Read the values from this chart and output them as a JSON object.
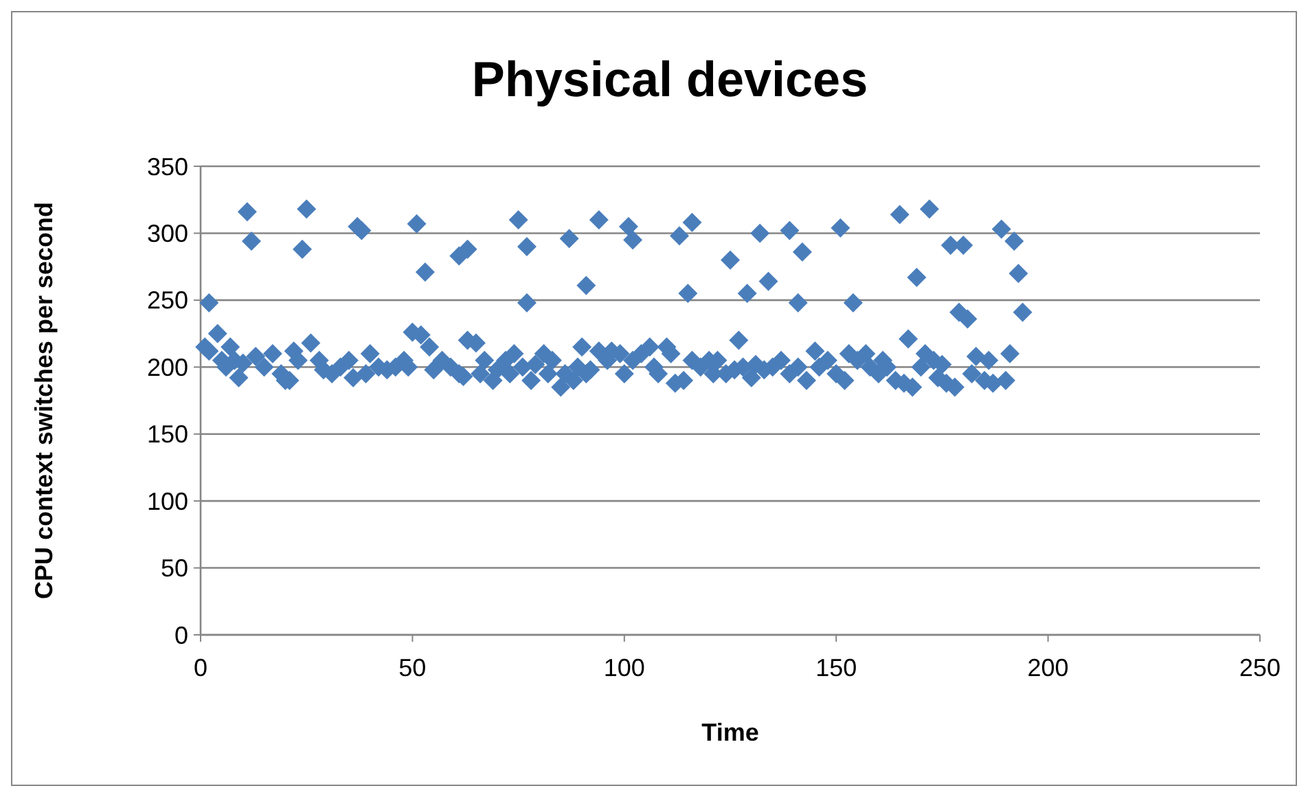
{
  "chart_data": {
    "type": "scatter",
    "title": "Physical devices",
    "xlabel": "Time",
    "ylabel": "CPU context switches per second",
    "xlim": [
      0,
      250
    ],
    "xticks": [
      0,
      50,
      100,
      150,
      200,
      250
    ],
    "ylim": [
      0,
      350
    ],
    "yticks": [
      0,
      50,
      100,
      150,
      200,
      250,
      300,
      350
    ],
    "grid": "y",
    "marker": "diamond",
    "series": [
      {
        "color": "#4a7ebb",
        "x": [
          1,
          2,
          4,
          5,
          6,
          7,
          8,
          9,
          10,
          13,
          15,
          17,
          19,
          20,
          21,
          22,
          23,
          26,
          28,
          29,
          31,
          33,
          35,
          36,
          39,
          40,
          42,
          44,
          46,
          48,
          49,
          50,
          52,
          54,
          55,
          57,
          59,
          61,
          62,
          63,
          65,
          66,
          67,
          69,
          70,
          72,
          73,
          74,
          76,
          78,
          79,
          81,
          82,
          83,
          85,
          86,
          88,
          89,
          90,
          91,
          92,
          94,
          96,
          97,
          99,
          100,
          102,
          104,
          106,
          107,
          108,
          110,
          111,
          112,
          114,
          116,
          118,
          120,
          121,
          122,
          124,
          126,
          128,
          130,
          131,
          133,
          135,
          137,
          139,
          141,
          143,
          145,
          146,
          148,
          150,
          152,
          153,
          155,
          157,
          158,
          160,
          161,
          162,
          164,
          166,
          168,
          170,
          171,
          173,
          174,
          175,
          176,
          178,
          182,
          183,
          185,
          186,
          187,
          190,
          2,
          11,
          12,
          24,
          25,
          37,
          38,
          51,
          53,
          61,
          63,
          75,
          77,
          77,
          87,
          91,
          94,
          101,
          102,
          113,
          115,
          116,
          125,
          127,
          129,
          132,
          134,
          139,
          141,
          142,
          151,
          154,
          165,
          167,
          169,
          172,
          177,
          179,
          180,
          181,
          189,
          191,
          192,
          193,
          194
        ],
        "values": [
          215,
          212,
          225,
          205,
          200,
          215,
          205,
          192,
          203,
          208,
          200,
          210,
          195,
          190,
          190,
          212,
          205,
          218,
          205,
          198,
          195,
          200,
          205,
          192,
          195,
          210,
          200,
          198,
          200,
          205,
          200,
          226,
          224,
          215,
          198,
          205,
          200,
          195,
          193,
          220,
          218,
          195,
          205,
          190,
          198,
          205,
          195,
          210,
          200,
          190,
          202,
          210,
          195,
          205,
          185,
          195,
          190,
          200,
          215,
          195,
          198,
          212,
          205,
          212,
          210,
          195,
          205,
          210,
          215,
          200,
          195,
          215,
          210,
          188,
          190,
          205,
          200,
          205,
          195,
          205,
          195,
          198,
          200,
          192,
          202,
          198,
          200,
          205,
          195,
          200,
          190,
          212,
          200,
          205,
          195,
          190,
          210,
          205,
          210,
          200,
          195,
          205,
          200,
          190,
          188,
          185,
          200,
          210,
          205,
          192,
          202,
          188,
          185,
          195,
          208,
          190,
          205,
          188,
          190,
          248,
          316,
          294,
          288,
          318,
          305,
          302,
          307,
          271,
          283,
          288,
          310,
          290,
          248,
          296,
          261,
          310,
          305,
          295,
          298,
          255,
          308,
          280,
          220,
          255,
          300,
          264,
          302,
          248,
          286,
          304,
          248,
          314,
          221,
          267,
          318,
          291,
          241,
          291,
          236,
          303,
          210,
          294,
          270,
          241
        ]
      }
    ]
  }
}
